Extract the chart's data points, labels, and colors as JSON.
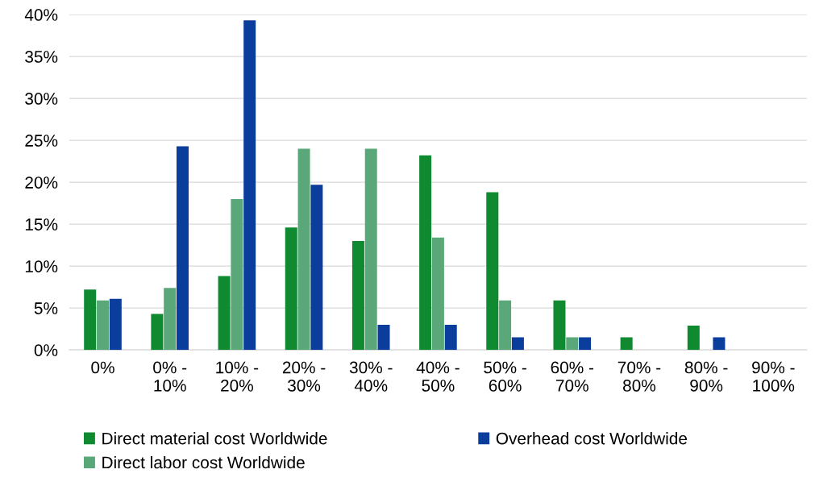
{
  "chart_data": {
    "type": "bar",
    "categories": [
      "0%",
      "0% -\n10%",
      "10% -\n20%",
      "20% -\n30%",
      "30% -\n40%",
      "40% -\n50%",
      "50% -\n60%",
      "60% -\n70%",
      "70% -\n80%",
      "80% -\n90%",
      "90% -\n100%"
    ],
    "series": [
      {
        "name": "Direct material cost Worldwide",
        "color": "#0f8a30",
        "values": [
          7.2,
          4.3,
          8.8,
          14.6,
          13.0,
          23.2,
          18.8,
          5.9,
          1.5,
          2.9,
          0
        ]
      },
      {
        "name": "Direct labor cost Worldwide",
        "color": "#5aa87a",
        "values": [
          5.9,
          7.4,
          18.0,
          24.0,
          24.0,
          13.4,
          5.9,
          1.5,
          0,
          0,
          0
        ]
      },
      {
        "name": "Overhead cost Worldwide",
        "color": "#0b3d9c",
        "values": [
          6.1,
          24.3,
          39.3,
          19.7,
          3.0,
          3.0,
          1.5,
          1.5,
          0,
          1.5,
          0
        ]
      }
    ],
    "ylim": [
      0,
      40
    ],
    "yticks": [
      {
        "value": 0,
        "label": "0%"
      },
      {
        "value": 5,
        "label": "5%"
      },
      {
        "value": 10,
        "label": "10%"
      },
      {
        "value": 15,
        "label": "15%"
      },
      {
        "value": 20,
        "label": "20%"
      },
      {
        "value": 25,
        "label": "25%"
      },
      {
        "value": 30,
        "label": "30%"
      },
      {
        "value": 35,
        "label": "35%"
      },
      {
        "value": 40,
        "label": "40%"
      }
    ],
    "grid": "y",
    "legend": "bottom"
  }
}
